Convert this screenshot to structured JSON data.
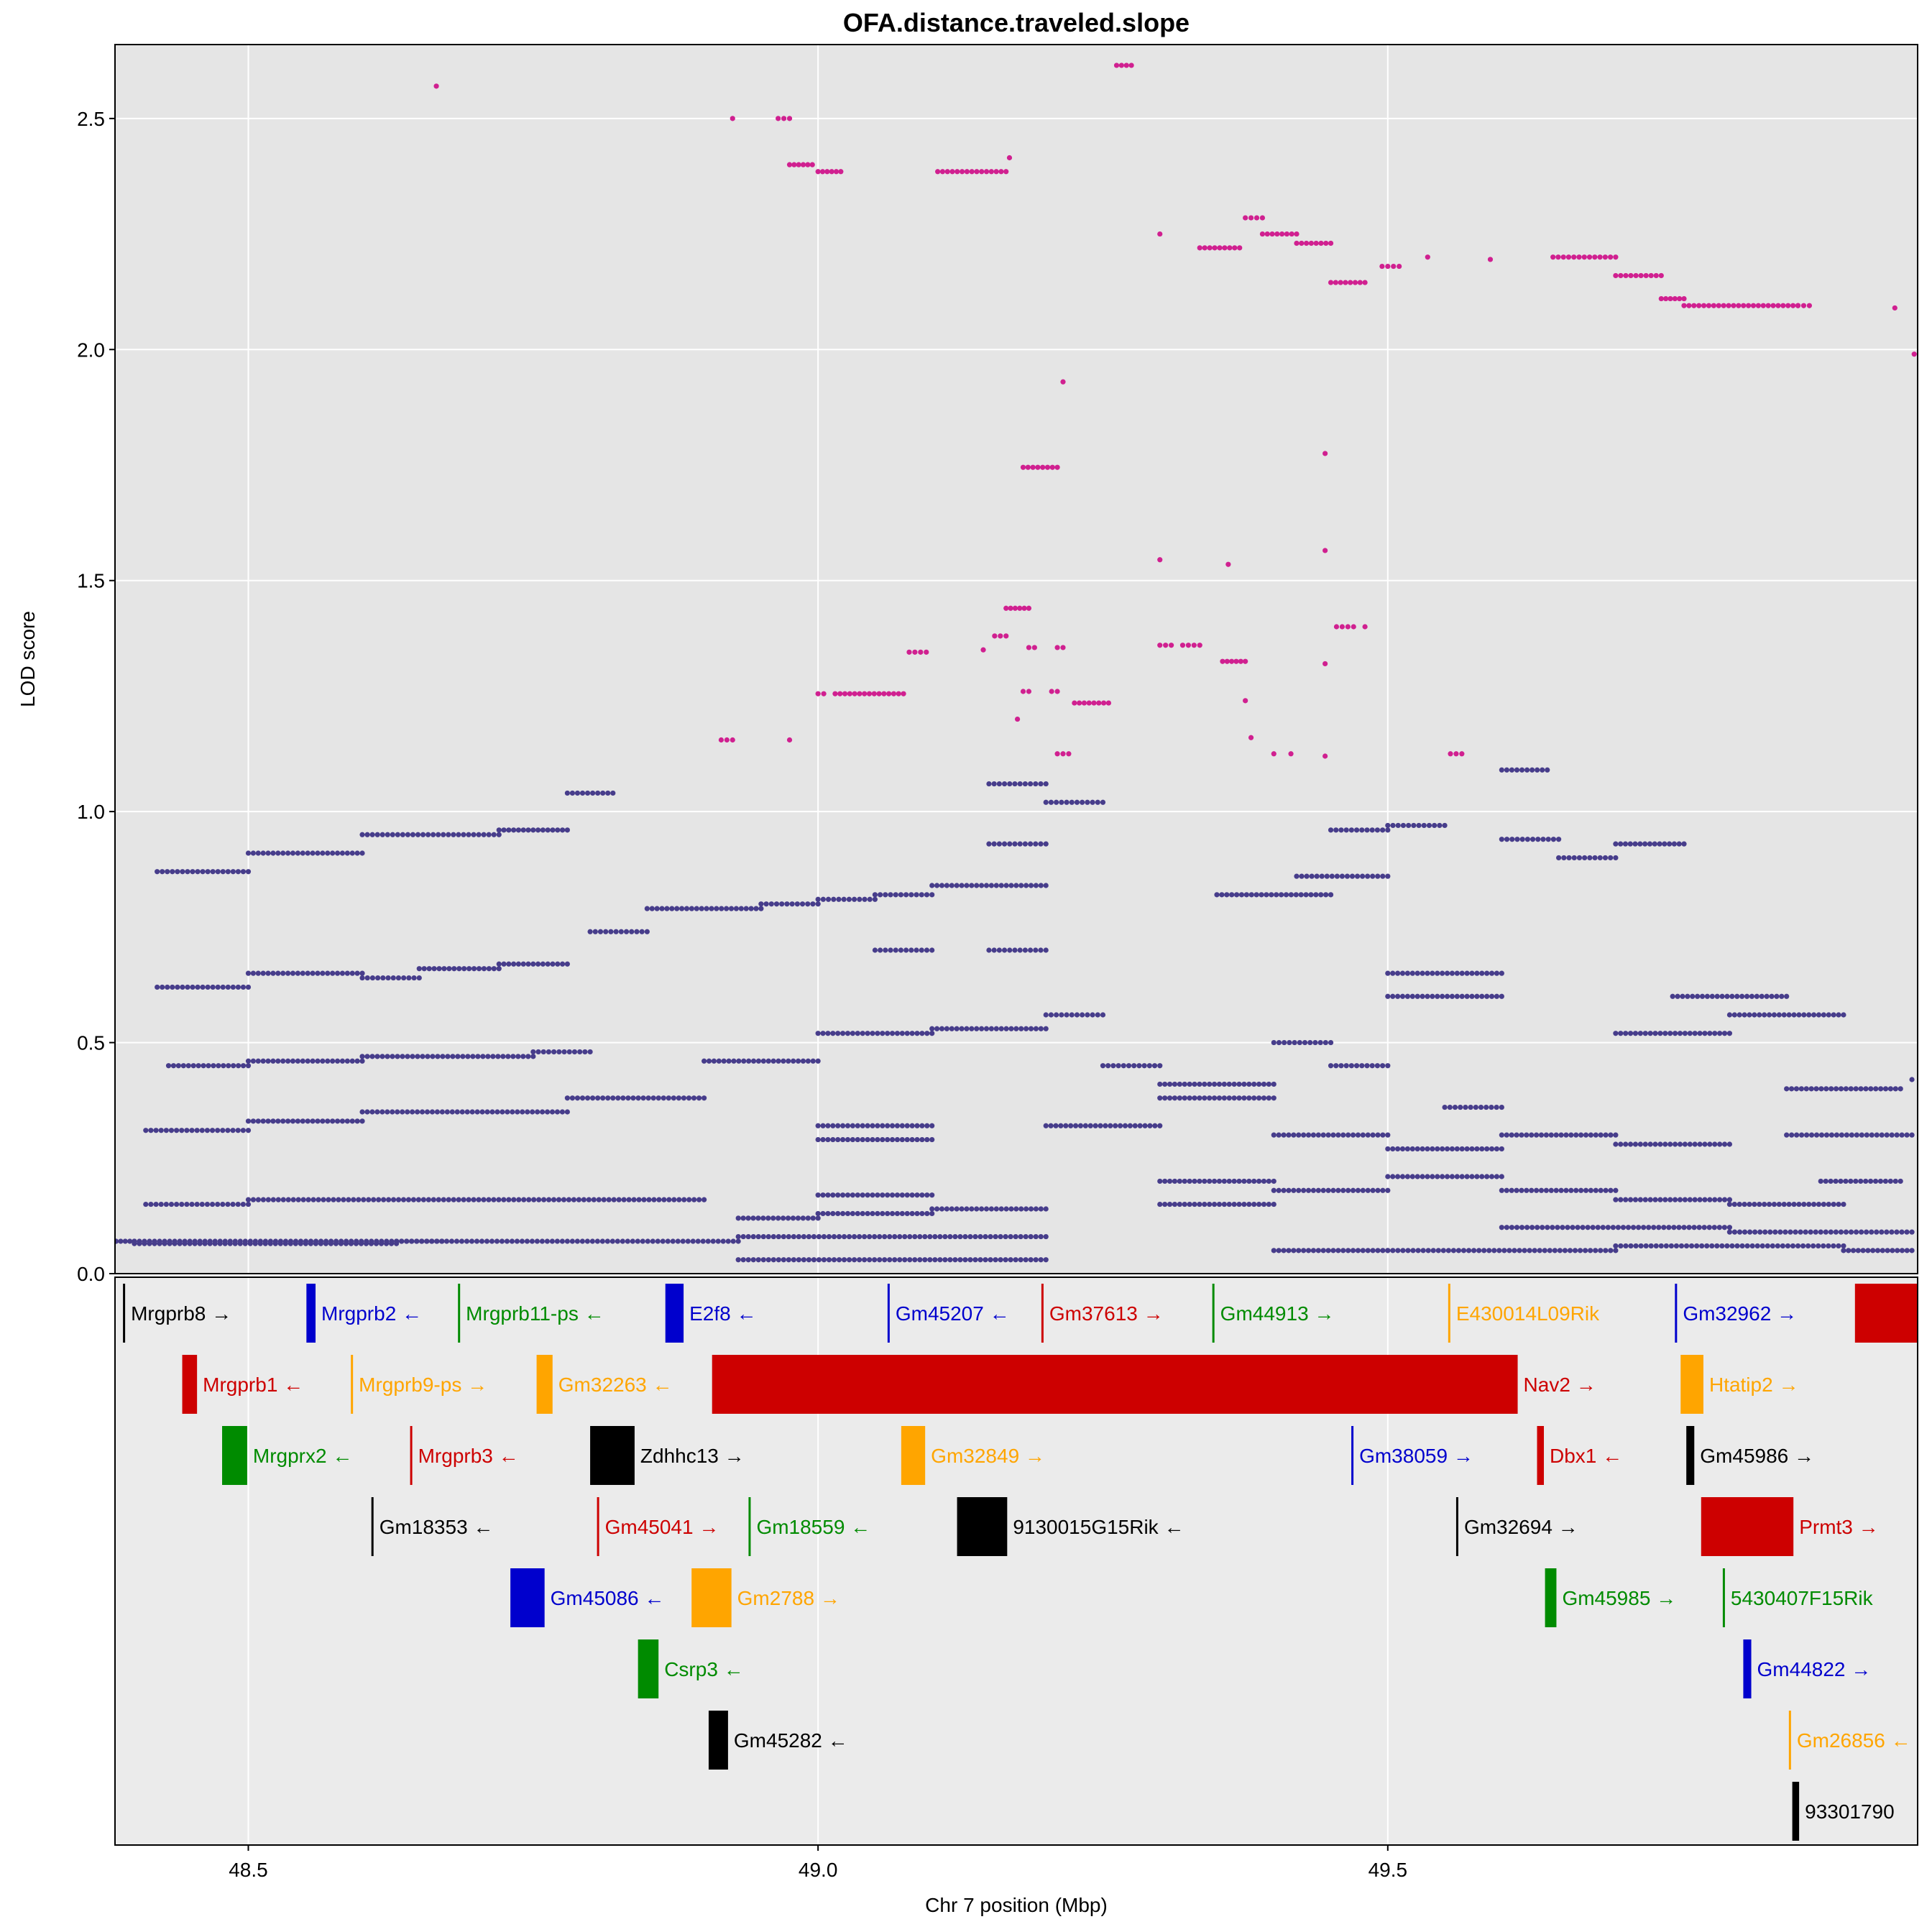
{
  "chart_data": {
    "type": "scatter",
    "title": "OFA.distance.traveled.slope",
    "xlabel": "Chr 7 position (Mbp)",
    "ylabel": "LOD score",
    "xlim": [
      48.383,
      49.965
    ],
    "ylim": [
      0.0,
      2.66
    ],
    "x_ticks": [
      48.5,
      49.0,
      49.5
    ],
    "x_tick_labels": [
      "48.5",
      "49.0",
      "49.5"
    ],
    "y_ticks": [
      0.0,
      0.5,
      1.0,
      1.5,
      2.0,
      2.5
    ],
    "y_tick_labels": [
      "0.0",
      "0.5",
      "1.0",
      "1.5",
      "2.0",
      "2.5"
    ],
    "grid": true,
    "colors": {
      "panel_bg": "#e5e5e5",
      "gene_panel_bg": "#ebebeb",
      "grid": "#ffffff",
      "base_points": "#473d8b",
      "highlight_points": "#d02090"
    },
    "highlight_segments": [
      {
        "x": [
          48.665,
          48.665
        ],
        "y": 2.57
      },
      {
        "x": [
          48.925,
          48.925
        ],
        "y": 2.5
      },
      {
        "x": [
          48.965,
          48.975
        ],
        "y": 2.5
      },
      {
        "x": [
          48.975,
          48.995
        ],
        "y": 2.4
      },
      {
        "x": [
          49.0,
          49.02
        ],
        "y": 2.385
      },
      {
        "x": [
          49.105,
          49.165
        ],
        "y": 2.385
      },
      {
        "x": [
          49.168,
          49.168
        ],
        "y": 2.415
      },
      {
        "x": [
          49.262,
          49.275
        ],
        "y": 2.615
      },
      {
        "x": [
          49.3,
          49.3
        ],
        "y": 2.25
      },
      {
        "x": [
          49.335,
          49.37
        ],
        "y": 2.22
      },
      {
        "x": [
          49.375,
          49.39
        ],
        "y": 2.285
      },
      {
        "x": [
          49.39,
          49.42
        ],
        "y": 2.25
      },
      {
        "x": [
          49.42,
          49.45
        ],
        "y": 2.23
      },
      {
        "x": [
          49.45,
          49.48
        ],
        "y": 2.145
      },
      {
        "x": [
          49.495,
          49.51
        ],
        "y": 2.18
      },
      {
        "x": [
          49.535,
          49.535
        ],
        "y": 2.2
      },
      {
        "x": [
          49.59,
          49.59
        ],
        "y": 2.195
      },
      {
        "x": [
          49.645,
          49.7
        ],
        "y": 2.2
      },
      {
        "x": [
          49.7,
          49.74
        ],
        "y": 2.16
      },
      {
        "x": [
          49.74,
          49.76
        ],
        "y": 2.11
      },
      {
        "x": [
          49.76,
          49.86
        ],
        "y": 2.095
      },
      {
        "x": [
          49.86,
          49.87
        ],
        "y": 2.095
      },
      {
        "x": [
          49.945,
          49.945
        ],
        "y": 2.09
      },
      {
        "x": [
          49.962,
          49.962
        ],
        "y": 1.99
      },
      {
        "x": [
          49.215,
          49.215
        ],
        "y": 1.93
      },
      {
        "x": [
          49.18,
          49.21
        ],
        "y": 1.745
      },
      {
        "x": [
          49.445,
          49.445
        ],
        "y": 1.775
      },
      {
        "x": [
          49.445,
          49.445
        ],
        "y": 1.565
      },
      {
        "x": [
          49.3,
          49.3
        ],
        "y": 1.545
      },
      {
        "x": [
          49.36,
          49.36
        ],
        "y": 1.535
      },
      {
        "x": [
          49.165,
          49.185
        ],
        "y": 1.44
      },
      {
        "x": [
          49.155,
          49.165
        ],
        "y": 1.38
      },
      {
        "x": [
          49.455,
          49.47
        ],
        "y": 1.4
      },
      {
        "x": [
          49.48,
          49.48
        ],
        "y": 1.4
      },
      {
        "x": [
          49.3,
          49.31
        ],
        "y": 1.36
      },
      {
        "x": [
          49.32,
          49.335
        ],
        "y": 1.36
      },
      {
        "x": [
          49.355,
          49.375
        ],
        "y": 1.325
      },
      {
        "x": [
          49.08,
          49.095
        ],
        "y": 1.345
      },
      {
        "x": [
          49.145,
          49.145
        ],
        "y": 1.35
      },
      {
        "x": [
          49.185,
          49.19
        ],
        "y": 1.355
      },
      {
        "x": [
          49.21,
          49.215
        ],
        "y": 1.355
      },
      {
        "x": [
          49.445,
          49.445
        ],
        "y": 1.32
      },
      {
        "x": [
          49.0,
          49.005
        ],
        "y": 1.255
      },
      {
        "x": [
          49.015,
          49.075
        ],
        "y": 1.255
      },
      {
        "x": [
          49.18,
          49.185
        ],
        "y": 1.26
      },
      {
        "x": [
          49.205,
          49.21
        ],
        "y": 1.26
      },
      {
        "x": [
          49.225,
          49.255
        ],
        "y": 1.235
      },
      {
        "x": [
          49.375,
          49.375
        ],
        "y": 1.24
      },
      {
        "x": [
          49.175,
          49.175
        ],
        "y": 1.2
      },
      {
        "x": [
          48.915,
          48.925
        ],
        "y": 1.155
      },
      {
        "x": [
          48.975,
          48.975
        ],
        "y": 1.155
      },
      {
        "x": [
          49.38,
          49.38
        ],
        "y": 1.16
      },
      {
        "x": [
          49.21,
          49.22
        ],
        "y": 1.125
      },
      {
        "x": [
          49.4,
          49.4
        ],
        "y": 1.125
      },
      {
        "x": [
          49.415,
          49.415
        ],
        "y": 1.125
      },
      {
        "x": [
          49.445,
          49.445
        ],
        "y": 1.12
      },
      {
        "x": [
          49.555,
          49.565
        ],
        "y": 1.125
      }
    ],
    "base_segments": [
      {
        "x": [
          48.38,
          48.4
        ],
        "y": 0.07
      },
      {
        "x": [
          48.4,
          48.63
        ],
        "y": 0.065
      },
      {
        "x": [
          48.63,
          48.93
        ],
        "y": 0.07
      },
      {
        "x": [
          48.4,
          48.67
        ],
        "y": 0.07
      },
      {
        "x": [
          48.41,
          48.5
        ],
        "y": 0.15
      },
      {
        "x": [
          48.5,
          48.9
        ],
        "y": 0.16
      },
      {
        "x": [
          48.41,
          48.5
        ],
        "y": 0.31
      },
      {
        "x": [
          48.5,
          48.6
        ],
        "y": 0.33
      },
      {
        "x": [
          48.6,
          48.78
        ],
        "y": 0.35
      },
      {
        "x": [
          48.78,
          48.9
        ],
        "y": 0.38
      },
      {
        "x": [
          48.43,
          48.5
        ],
        "y": 0.45
      },
      {
        "x": [
          48.5,
          48.6
        ],
        "y": 0.46
      },
      {
        "x": [
          48.6,
          48.75
        ],
        "y": 0.47
      },
      {
        "x": [
          48.75,
          48.8
        ],
        "y": 0.48
      },
      {
        "x": [
          48.42,
          48.5
        ],
        "y": 0.62
      },
      {
        "x": [
          48.5,
          48.6
        ],
        "y": 0.65
      },
      {
        "x": [
          48.6,
          48.65
        ],
        "y": 0.64
      },
      {
        "x": [
          48.65,
          48.72
        ],
        "y": 0.66
      },
      {
        "x": [
          48.72,
          48.78
        ],
        "y": 0.67
      },
      {
        "x": [
          48.42,
          48.5
        ],
        "y": 0.87
      },
      {
        "x": [
          48.5,
          48.6
        ],
        "y": 0.91
      },
      {
        "x": [
          48.6,
          48.72
        ],
        "y": 0.95
      },
      {
        "x": [
          48.72,
          48.78
        ],
        "y": 0.96
      },
      {
        "x": [
          48.78,
          48.82
        ],
        "y": 1.04
      },
      {
        "x": [
          48.8,
          48.85
        ],
        "y": 0.74
      },
      {
        "x": [
          48.85,
          48.95
        ],
        "y": 0.79
      },
      {
        "x": [
          48.95,
          49.0
        ],
        "y": 0.8
      },
      {
        "x": [
          49.0,
          49.05
        ],
        "y": 0.81
      },
      {
        "x": [
          49.05,
          49.1
        ],
        "y": 0.82
      },
      {
        "x": [
          49.1,
          49.2
        ],
        "y": 0.84
      },
      {
        "x": [
          49.2,
          49.25
        ],
        "y": 0.56
      },
      {
        "x": [
          49.1,
          49.2
        ],
        "y": 0.53
      },
      {
        "x": [
          49.0,
          49.1
        ],
        "y": 0.52
      },
      {
        "x": [
          48.9,
          49.0
        ],
        "y": 0.46
      },
      {
        "x": [
          48.93,
          49.0
        ],
        "y": 0.12
      },
      {
        "x": [
          49.0,
          49.1
        ],
        "y": 0.13
      },
      {
        "x": [
          49.1,
          49.2
        ],
        "y": 0.14
      },
      {
        "x": [
          48.93,
          49.2
        ],
        "y": 0.08
      },
      {
        "x": [
          48.93,
          49.2
        ],
        "y": 0.03
      },
      {
        "x": [
          49.0,
          49.1
        ],
        "y": 0.17
      },
      {
        "x": [
          49.0,
          49.1
        ],
        "y": 0.29
      },
      {
        "x": [
          49.0,
          49.1
        ],
        "y": 0.32
      },
      {
        "x": [
          49.2,
          49.3
        ],
        "y": 0.32
      },
      {
        "x": [
          49.25,
          49.3
        ],
        "y": 0.45
      },
      {
        "x": [
          49.3,
          49.4
        ],
        "y": 0.41
      },
      {
        "x": [
          49.4,
          49.45
        ],
        "y": 0.5
      },
      {
        "x": [
          49.45,
          49.5
        ],
        "y": 0.45
      },
      {
        "x": [
          49.5,
          49.6
        ],
        "y": 0.6
      },
      {
        "x": [
          49.5,
          49.6
        ],
        "y": 0.65
      },
      {
        "x": [
          49.3,
          49.4
        ],
        "y": 0.2
      },
      {
        "x": [
          49.4,
          49.5
        ],
        "y": 0.18
      },
      {
        "x": [
          49.5,
          49.6
        ],
        "y": 0.21
      },
      {
        "x": [
          49.6,
          49.7
        ],
        "y": 0.18
      },
      {
        "x": [
          49.7,
          49.8
        ],
        "y": 0.16
      },
      {
        "x": [
          49.8,
          49.9
        ],
        "y": 0.15
      },
      {
        "x": [
          49.3,
          49.4
        ],
        "y": 0.15
      },
      {
        "x": [
          49.4,
          49.5
        ],
        "y": 0.05
      },
      {
        "x": [
          49.5,
          49.7
        ],
        "y": 0.05
      },
      {
        "x": [
          49.7,
          49.9
        ],
        "y": 0.06
      },
      {
        "x": [
          49.6,
          49.8
        ],
        "y": 0.1
      },
      {
        "x": [
          49.8,
          49.96
        ],
        "y": 0.09
      },
      {
        "x": [
          49.7,
          49.8
        ],
        "y": 0.52
      },
      {
        "x": [
          49.8,
          49.9
        ],
        "y": 0.56
      },
      {
        "x": [
          49.75,
          49.85
        ],
        "y": 0.6
      },
      {
        "x": [
          49.85,
          49.96
        ],
        "y": 0.3
      },
      {
        "x": [
          49.6,
          49.65
        ],
        "y": 0.94
      },
      {
        "x": [
          49.65,
          49.7
        ],
        "y": 0.9
      },
      {
        "x": [
          49.7,
          49.76
        ],
        "y": 0.93
      },
      {
        "x": [
          49.6,
          49.64
        ],
        "y": 1.09
      },
      {
        "x": [
          49.5,
          49.55
        ],
        "y": 0.97
      },
      {
        "x": [
          49.42,
          49.5
        ],
        "y": 0.86
      },
      {
        "x": [
          49.45,
          49.5
        ],
        "y": 0.96
      },
      {
        "x": [
          49.35,
          49.45
        ],
        "y": 0.82
      },
      {
        "x": [
          49.2,
          49.25
        ],
        "y": 1.02
      },
      {
        "x": [
          49.15,
          49.2
        ],
        "y": 1.06
      },
      {
        "x": [
          49.15,
          49.2
        ],
        "y": 0.93
      },
      {
        "x": [
          49.05,
          49.1
        ],
        "y": 0.7
      },
      {
        "x": [
          49.15,
          49.2
        ],
        "y": 0.7
      },
      {
        "x": [
          49.3,
          49.4
        ],
        "y": 0.38
      },
      {
        "x": [
          49.4,
          49.5
        ],
        "y": 0.3
      },
      {
        "x": [
          49.5,
          49.6
        ],
        "y": 0.27
      },
      {
        "x": [
          49.55,
          49.6
        ],
        "y": 0.36
      },
      {
        "x": [
          49.6,
          49.7
        ],
        "y": 0.3
      },
      {
        "x": [
          49.7,
          49.8
        ],
        "y": 0.28
      },
      {
        "x": [
          49.85,
          49.95
        ],
        "y": 0.4
      },
      {
        "x": [
          49.88,
          49.95
        ],
        "y": 0.2
      },
      {
        "x": [
          49.9,
          49.96
        ],
        "y": 0.05
      },
      {
        "x": [
          49.96,
          49.96
        ],
        "y": 0.42
      }
    ]
  },
  "genes": [
    {
      "name": "Mrgprb8 →",
      "start": 48.39,
      "end": 48.39,
      "row": 0,
      "color": "#000000"
    },
    {
      "name": "Mrgprb2 ←",
      "start": 48.551,
      "end": 48.559,
      "row": 0,
      "color": "#0000cd"
    },
    {
      "name": "Mrgprb11-ps ←",
      "start": 48.684,
      "end": 48.684,
      "row": 0,
      "color": "#008b00"
    },
    {
      "name": "E2f8 ←",
      "start": 48.866,
      "end": 48.882,
      "row": 0,
      "color": "#0000cd"
    },
    {
      "name": "Gm45207 ←",
      "start": 49.061,
      "end": 49.061,
      "row": 0,
      "color": "#0000cd"
    },
    {
      "name": "Gm37613 →",
      "start": 49.196,
      "end": 49.196,
      "row": 0,
      "color": "#cd0000"
    },
    {
      "name": "Gm44913 →",
      "start": 49.346,
      "end": 49.346,
      "row": 0,
      "color": "#008b00"
    },
    {
      "name": "E430014L09Rik",
      "start": 49.553,
      "end": 49.553,
      "row": 0,
      "color": "#ffa500"
    },
    {
      "name": "Gm32962 →",
      "start": 49.752,
      "end": 49.752,
      "row": 0,
      "color": "#0000cd"
    },
    {
      "name": "",
      "start": 49.91,
      "end": 49.97,
      "row": 0,
      "color": "#cd0000"
    },
    {
      "name": "Mrgprb1 ←",
      "start": 48.442,
      "end": 48.455,
      "row": 1,
      "color": "#cd0000"
    },
    {
      "name": "Mrgprb9-ps →",
      "start": 48.59,
      "end": 48.59,
      "row": 1,
      "color": "#ffa500"
    },
    {
      "name": "Gm32263 ←",
      "start": 48.753,
      "end": 48.767,
      "row": 1,
      "color": "#ffa500"
    },
    {
      "name": "Nav2 →",
      "start": 48.907,
      "end": 49.614,
      "row": 1,
      "color": "#cd0000"
    },
    {
      "name": "Htatip2 →",
      "start": 49.757,
      "end": 49.777,
      "row": 1,
      "color": "#ffa500"
    },
    {
      "name": "Mrgprx2 ←",
      "start": 48.477,
      "end": 48.499,
      "row": 2,
      "color": "#008b00"
    },
    {
      "name": "Mrgprb3 ←",
      "start": 48.642,
      "end": 48.642,
      "row": 2,
      "color": "#cd0000"
    },
    {
      "name": "Zdhhc13 →",
      "start": 48.8,
      "end": 48.839,
      "row": 2,
      "color": "#000000"
    },
    {
      "name": "Gm32849 →",
      "start": 49.073,
      "end": 49.094,
      "row": 2,
      "color": "#ffa500"
    },
    {
      "name": "Gm38059 →",
      "start": 49.468,
      "end": 49.468,
      "row": 2,
      "color": "#0000cd"
    },
    {
      "name": "Dbx1 ←",
      "start": 49.631,
      "end": 49.637,
      "row": 2,
      "color": "#cd0000"
    },
    {
      "name": "Gm45986 →",
      "start": 49.762,
      "end": 49.769,
      "row": 2,
      "color": "#000000"
    },
    {
      "name": "Gm18353 ←",
      "start": 48.608,
      "end": 48.608,
      "row": 3,
      "color": "#000000"
    },
    {
      "name": "Gm45041 →",
      "start": 48.806,
      "end": 48.806,
      "row": 3,
      "color": "#cd0000"
    },
    {
      "name": "Gm18559 ←",
      "start": 48.939,
      "end": 48.939,
      "row": 3,
      "color": "#008b00"
    },
    {
      "name": "9130015G15Rik ←",
      "start": 49.122,
      "end": 49.166,
      "row": 3,
      "color": "#000000"
    },
    {
      "name": "Gm32694 →",
      "start": 49.56,
      "end": 49.56,
      "row": 3,
      "color": "#000000"
    },
    {
      "name": "Prmt3 →",
      "start": 49.775,
      "end": 49.856,
      "row": 3,
      "color": "#cd0000"
    },
    {
      "name": "Gm45086 ←",
      "start": 48.73,
      "end": 48.76,
      "row": 4,
      "color": "#0000cd"
    },
    {
      "name": "Gm2788 →",
      "start": 48.889,
      "end": 48.924,
      "row": 4,
      "color": "#ffa500"
    },
    {
      "name": "Gm45985 →",
      "start": 49.638,
      "end": 49.648,
      "row": 4,
      "color": "#008b00"
    },
    {
      "name": "5430407F15Rik",
      "start": 49.794,
      "end": 49.794,
      "row": 4,
      "color": "#008b00"
    },
    {
      "name": "Csrp3 ←",
      "start": 48.842,
      "end": 48.86,
      "row": 5,
      "color": "#008b00"
    },
    {
      "name": "Gm44822 →",
      "start": 49.812,
      "end": 49.819,
      "row": 5,
      "color": "#0000cd"
    },
    {
      "name": "Gm45282 ←",
      "start": 48.904,
      "end": 48.921,
      "row": 6,
      "color": "#000000"
    },
    {
      "name": "Gm26856 ←",
      "start": 49.852,
      "end": 49.852,
      "row": 6,
      "color": "#ffa500"
    },
    {
      "name": "93301790",
      "start": 49.855,
      "end": 49.861,
      "row": 7,
      "color": "#000000"
    }
  ]
}
